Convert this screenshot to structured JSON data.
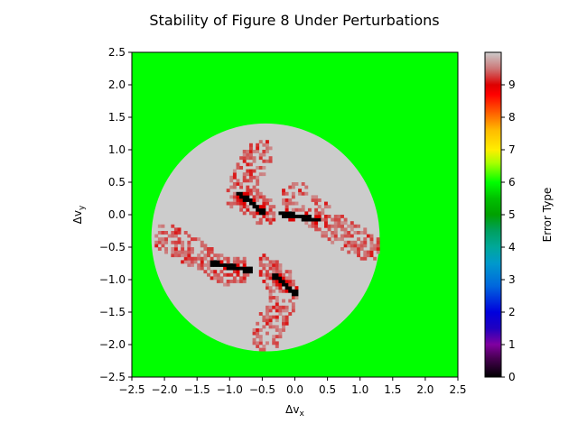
{
  "chart_data": {
    "type": "heatmap",
    "title": "Stability of Figure 8 Under Perturbations",
    "xlabel": "Δv_x",
    "ylabel": "Δv_y",
    "xlim": [
      -2.5,
      2.5
    ],
    "ylim": [
      -2.5,
      2.5
    ],
    "xticks": [
      -2.5,
      -2.0,
      -1.5,
      -1.0,
      -0.5,
      0.0,
      0.5,
      1.0,
      1.5,
      2.0,
      2.5
    ],
    "yticks": [
      -2.5,
      -2.0,
      -1.5,
      -1.0,
      -0.5,
      0.0,
      0.5,
      1.0,
      1.5,
      2.0,
      2.5
    ],
    "xtick_labels": [
      "−2.5",
      "−2.0",
      "−1.5",
      "−1.0",
      "−0.5",
      "0.0",
      "0.5",
      "1.0",
      "1.5",
      "2.0",
      "2.5"
    ],
    "ytick_labels": [
      "−2.5",
      "−2.0",
      "−1.5",
      "−1.0",
      "−0.5",
      "0.0",
      "0.5",
      "1.0",
      "1.5",
      "2.0",
      "2.5"
    ],
    "background_value": 6,
    "stable_disk": {
      "center": [
        -0.45,
        -0.35
      ],
      "radius": 1.75,
      "value": 10
    },
    "arms": [
      {
        "name": "upper-left",
        "points": [
          [
            -0.55,
            0.95
          ],
          [
            -0.75,
            0.55
          ],
          [
            -0.85,
            0.3
          ],
          [
            -0.6,
            0.15
          ],
          [
            -0.5,
            0.05
          ]
        ]
      },
      {
        "name": "right",
        "points": [
          [
            0.0,
            0.3
          ],
          [
            0.2,
            0.15
          ],
          [
            0.4,
            -0.05
          ],
          [
            0.7,
            -0.25
          ],
          [
            1.1,
            -0.5
          ]
        ]
      },
      {
        "name": "left",
        "points": [
          [
            -1.95,
            -0.35
          ],
          [
            -1.6,
            -0.55
          ],
          [
            -1.3,
            -0.75
          ],
          [
            -1.1,
            -0.9
          ],
          [
            -0.9,
            -0.85
          ]
        ]
      },
      {
        "name": "lower",
        "points": [
          [
            -0.45,
            -1.9
          ],
          [
            -0.3,
            -1.55
          ],
          [
            -0.15,
            -1.25
          ],
          [
            -0.25,
            -1.0
          ],
          [
            -0.35,
            -0.8
          ]
        ]
      }
    ],
    "black_segments": [
      [
        [
          -0.85,
          0.33
        ],
        [
          -0.5,
          0.05
        ]
      ],
      [
        [
          -0.2,
          0.02
        ],
        [
          0.35,
          -0.08
        ]
      ],
      [
        [
          -1.25,
          -0.75
        ],
        [
          -0.7,
          -0.85
        ]
      ],
      [
        [
          -0.3,
          -0.95
        ],
        [
          0.0,
          -1.2
        ]
      ]
    ],
    "colorbar": {
      "label": "Error Type",
      "range": [
        0,
        10
      ],
      "ticks": [
        0,
        1,
        2,
        3,
        4,
        5,
        6,
        7,
        8,
        9
      ],
      "tick_labels": [
        "0",
        "1",
        "2",
        "3",
        "4",
        "5",
        "6",
        "7",
        "8",
        "9"
      ],
      "colormap": [
        [
          0.0,
          "#000000"
        ],
        [
          0.06,
          "#4a0055"
        ],
        [
          0.1,
          "#8000a0"
        ],
        [
          0.15,
          "#2000c0"
        ],
        [
          0.2,
          "#0000dd"
        ],
        [
          0.28,
          "#0066dd"
        ],
        [
          0.35,
          "#0099cc"
        ],
        [
          0.4,
          "#00a89a"
        ],
        [
          0.45,
          "#00a060"
        ],
        [
          0.5,
          "#00a000"
        ],
        [
          0.55,
          "#00c000"
        ],
        [
          0.6,
          "#00ff00"
        ],
        [
          0.66,
          "#aaff00"
        ],
        [
          0.7,
          "#ffee00"
        ],
        [
          0.76,
          "#ffbb00"
        ],
        [
          0.82,
          "#ff5500"
        ],
        [
          0.87,
          "#ff0000"
        ],
        [
          0.9,
          "#dd0000"
        ],
        [
          0.95,
          "#cc7777"
        ],
        [
          1.0,
          "#cccccc"
        ]
      ]
    }
  }
}
